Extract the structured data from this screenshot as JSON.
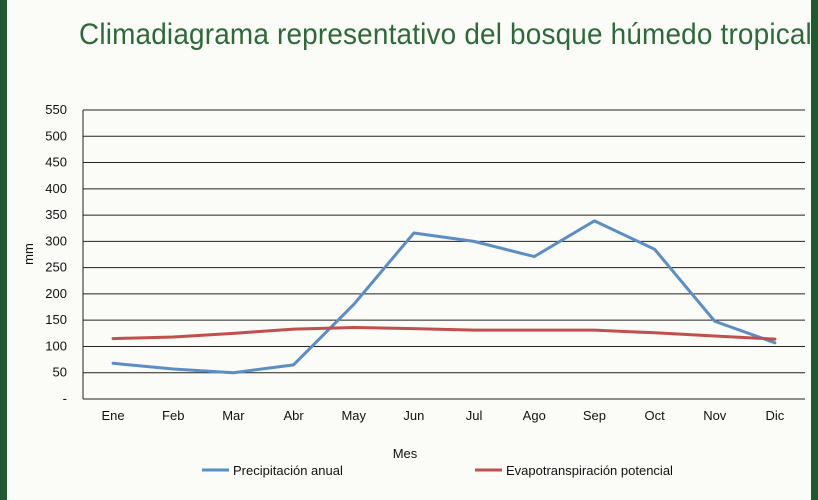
{
  "chart_data": {
    "type": "line",
    "title": "Climadiagrama representativo del bosque húmedo tropical",
    "xlabel": "Mes",
    "ylabel": "mm",
    "categories": [
      "Ene",
      "Feb",
      "Mar",
      "Abr",
      "May",
      "Jun",
      "Jul",
      "Ago",
      "Sep",
      "Oct",
      "Nov",
      "Dic"
    ],
    "y_ticks": [
      "-",
      "50",
      "100",
      "150",
      "200",
      "250",
      "300",
      "350",
      "400",
      "450",
      "500",
      "550"
    ],
    "ylim": [
      0,
      550
    ],
    "grid": true,
    "legend_position": "bottom",
    "series": [
      {
        "name": "Precipitación anual",
        "color": "#5b8ec4",
        "values": [
          68,
          57,
          50,
          65,
          180,
          316,
          300,
          271,
          339,
          285,
          148,
          107
        ]
      },
      {
        "name": "Evapotranspiración potencial",
        "color": "#c0504d",
        "values": [
          115,
          118,
          125,
          133,
          136,
          134,
          131,
          131,
          131,
          126,
          120,
          114
        ]
      }
    ]
  }
}
